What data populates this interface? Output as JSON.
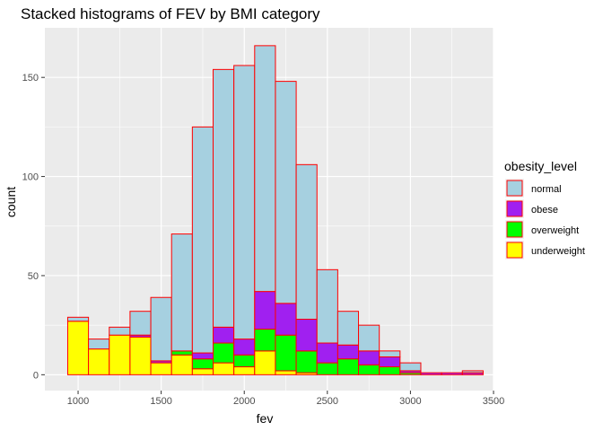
{
  "chart_data": {
    "type": "bar",
    "stacked": true,
    "title": "Stacked histograms of FEV by BMI category",
    "xlabel": "fev",
    "ylabel": "count",
    "xlim": [
      800,
      3500
    ],
    "ylim": [
      -8,
      175
    ],
    "xticks": [
      1000,
      1500,
      2000,
      2500,
      3000,
      3500
    ],
    "yticks": [
      0,
      50,
      100,
      150
    ],
    "bin_width": 125,
    "bins": [
      1000,
      1125,
      1250,
      1375,
      1500,
      1625,
      1750,
      1875,
      2000,
      2125,
      2250,
      2375,
      2500,
      2625,
      2750,
      2875,
      3000,
      3125,
      3250,
      3375
    ],
    "grid": true,
    "legend": {
      "title": "obesity_level",
      "position": "right",
      "entries": [
        "normal",
        "obese",
        "overweight",
        "underweight"
      ]
    },
    "outline_color": "#ff0000",
    "series": [
      {
        "name": "underweight",
        "color": "#ffff00",
        "values": [
          27,
          13,
          20,
          19,
          6,
          10,
          3,
          6,
          4,
          12,
          2,
          1,
          0,
          0,
          0,
          0,
          0,
          0,
          0,
          0
        ]
      },
      {
        "name": "overweight",
        "color": "#00ff00",
        "values": [
          0,
          0,
          0,
          0,
          0,
          2,
          5,
          10,
          6,
          11,
          18,
          11,
          6,
          8,
          5,
          4,
          1,
          0,
          0,
          0
        ]
      },
      {
        "name": "obese",
        "color": "#a020f0",
        "values": [
          0,
          0,
          0,
          1,
          1,
          0,
          3,
          8,
          8,
          19,
          16,
          16,
          10,
          7,
          7,
          5,
          1,
          1,
          1,
          1
        ]
      },
      {
        "name": "normal",
        "color": "#a6d0e0",
        "values": [
          2,
          5,
          4,
          12,
          32,
          59,
          114,
          130,
          138,
          124,
          112,
          78,
          37,
          17,
          13,
          3,
          4,
          0,
          0,
          1
        ]
      }
    ]
  }
}
